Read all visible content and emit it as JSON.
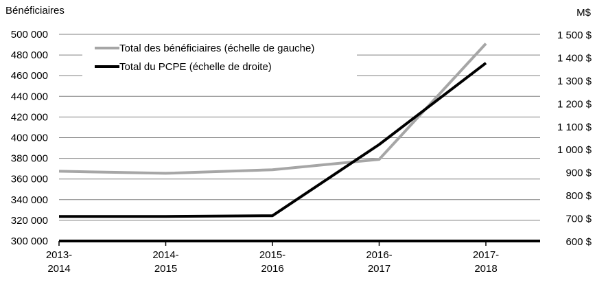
{
  "chart_data": {
    "type": "line",
    "title": "",
    "left_axis": {
      "label": "Bénéficiaires",
      "range": [
        300000,
        500000
      ],
      "ticks": [
        "300 000",
        "320 000",
        "340 000",
        "360 000",
        "380 000",
        "400 000",
        "420 000",
        "440 000",
        "460 000",
        "480 000",
        "500 000"
      ]
    },
    "right_axis": {
      "label": "M$",
      "range": [
        600,
        1500
      ],
      "ticks": [
        "600 $",
        "700 $",
        "800 $",
        "900 $",
        "1 000 $",
        "1 100 $",
        "1 200 $",
        "1 300 $",
        "1 400 $",
        "1 500 $"
      ]
    },
    "categories": [
      [
        "2013-",
        "2014"
      ],
      [
        "2014-",
        "2015"
      ],
      [
        "2015-",
        "2016"
      ],
      [
        "2016-",
        "2017"
      ],
      [
        "2017-",
        "2018"
      ]
    ],
    "series": [
      {
        "name": "Total des bénéficiaires (échelle de gauche)",
        "axis": "left",
        "color": "#a6a6a6",
        "values": [
          367500,
          365500,
          369000,
          379000,
          491000
        ]
      },
      {
        "name": "Total du PCPE (échelle de droite)",
        "axis": "right",
        "color": "#000000",
        "values": [
          707,
          707,
          710,
          1020,
          1375
        ]
      }
    ],
    "grid": true,
    "legend_position": "top-left"
  }
}
